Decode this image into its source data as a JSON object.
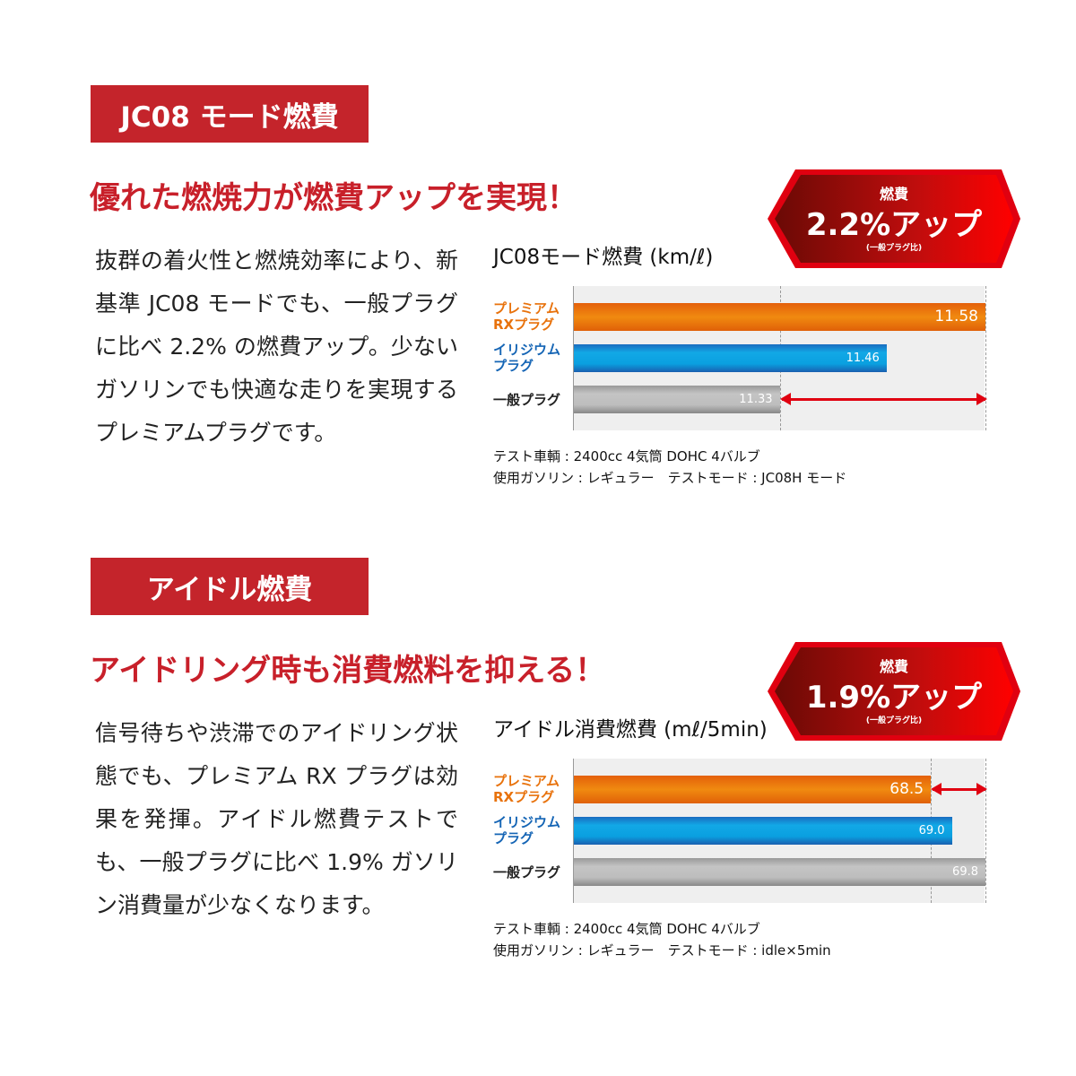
{
  "colors": {
    "header": "#c4242b",
    "premium": "#e8720c",
    "iridium": "#0e9fdc",
    "standard": "#b4b4b4",
    "arrow": "#e00010"
  },
  "sections": [
    {
      "header": "JC08 モード燃費",
      "headline": "優れた燃焼力が燃費アップを実現！",
      "body": "抜群の着火性と燃焼効率により、新基準 JC08 モードでも、一般プラグに比べ 2.2% の燃費アップ。少ないガソリンでも快適な走りを実現するプレミアムプラグです。",
      "badge": {
        "top": "燃費",
        "main": "2.2%アップ",
        "sub": "(一般プラグ比)"
      },
      "notes": [
        "テスト車輌 : 2400cc 4気筒 DOHC 4バルブ",
        "使用ガソリン : レギュラー　テストモード : JC08H モード"
      ]
    },
    {
      "header": "アイドル燃費",
      "headline": "アイドリング時も消費燃料を抑える！",
      "body": "信号待ちや渋滞でのアイドリング状態でも、プレミアム RX プラグは効果を発揮。アイドル燃費テストでも、一般プラグに比べ 1.9% ガソリン消費量が少なくなります。",
      "badge": {
        "top": "燃費",
        "main": "1.9%アップ",
        "sub": "(一般プラグ比)"
      },
      "notes": [
        "テスト車輌 : 2400cc 4気筒 DOHC 4バルブ",
        "使用ガソリン : レギュラー　テストモード : idle×5min"
      ]
    }
  ],
  "chart_data": [
    {
      "type": "bar",
      "orientation": "horizontal",
      "title": "JC08モード燃費 (km/ℓ)",
      "categories": [
        "プレミアム RXプラグ",
        "イリジウム プラグ",
        "一般プラグ"
      ],
      "values": [
        11.58,
        11.46,
        11.33
      ],
      "xlim": [
        11.08,
        11.58
      ],
      "reference_lines": [
        11.33,
        11.58
      ],
      "arrow": [
        11.33,
        11.58
      ]
    },
    {
      "type": "bar",
      "orientation": "horizontal",
      "title": "アイドル消費燃費 (mℓ/5min)",
      "categories": [
        "プレミアム RXプラグ",
        "イリジウム プラグ",
        "一般プラグ"
      ],
      "values": [
        68.5,
        69.0,
        69.8
      ],
      "xlim": [
        60.0,
        69.8
      ],
      "reference_lines": [
        68.5,
        69.8
      ],
      "arrow": [
        68.5,
        69.8
      ]
    }
  ]
}
